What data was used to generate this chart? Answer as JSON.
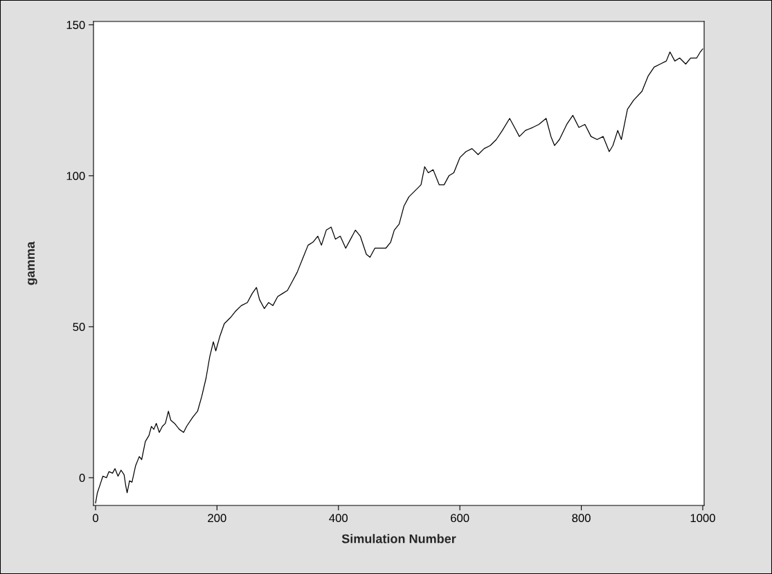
{
  "chart_data": {
    "type": "line",
    "xlabel": "Simulation Number",
    "ylabel": "gamma",
    "x": [
      0,
      3,
      8,
      12,
      18,
      22,
      28,
      32,
      37,
      42,
      47,
      50,
      52,
      56,
      60,
      66,
      72,
      76,
      82,
      88,
      92,
      96,
      100,
      105,
      110,
      115,
      120,
      124,
      130,
      138,
      145,
      150,
      160,
      168,
      175,
      182,
      188,
      194,
      198,
      205,
      212,
      222,
      230,
      240,
      250,
      258,
      265,
      270,
      278,
      285,
      292,
      300,
      308,
      316,
      324,
      332,
      342,
      350,
      358,
      366,
      372,
      380,
      388,
      395,
      403,
      412,
      420,
      428,
      436,
      446,
      452,
      460,
      470,
      478,
      486,
      492,
      500,
      508,
      516,
      526,
      536,
      542,
      548,
      556,
      566,
      574,
      582,
      590,
      600,
      610,
      620,
      630,
      640,
      650,
      660,
      670,
      682,
      690,
      698,
      708,
      720,
      730,
      742,
      750,
      756,
      764,
      776,
      786,
      796,
      806,
      816,
      826,
      836,
      846,
      852,
      860,
      866,
      876,
      886,
      900,
      910,
      920,
      930,
      940,
      946,
      954,
      962,
      972,
      980,
      990,
      996,
      1000
    ],
    "series": [
      {
        "color": "#000000",
        "values": [
          -8.4,
          -5,
          -2,
          0.5,
          0,
          2,
          1.5,
          3,
          0.5,
          2.5,
          1,
          -3,
          -5,
          -1,
          -1.5,
          4,
          7,
          6,
          12,
          14,
          17,
          16,
          18,
          15,
          17,
          18,
          22,
          19,
          18,
          16,
          15,
          17,
          20,
          22,
          27,
          33,
          40,
          45,
          42,
          47,
          51,
          53,
          55,
          57,
          58,
          61,
          63,
          59,
          56,
          58,
          57,
          60,
          61,
          62,
          65,
          68,
          73,
          77,
          78,
          80,
          77,
          82,
          83,
          79,
          80,
          76,
          79,
          82,
          80,
          74,
          73,
          76,
          76,
          76,
          78,
          82,
          84,
          90,
          93,
          95,
          97,
          103,
          101,
          102,
          97,
          97,
          100,
          101,
          106,
          108,
          109,
          107,
          109,
          110,
          112,
          115,
          119,
          116,
          113,
          115,
          116,
          117,
          119,
          113,
          110,
          112,
          117,
          120,
          116,
          117,
          113,
          112,
          113,
          108,
          110,
          115,
          112,
          122,
          125,
          128,
          133,
          136,
          137,
          138,
          141,
          138,
          139,
          137,
          139,
          139,
          141,
          142
        ]
      }
    ],
    "xlim": [
      -3.4,
      1002.3
    ],
    "ylim": [
      -9.2,
      151.1
    ],
    "xticks": [
      0,
      200,
      400,
      600,
      800,
      1000
    ],
    "yticks": [
      0,
      50,
      100,
      150
    ],
    "grid": false,
    "marker": "none",
    "line_style": "solid"
  }
}
